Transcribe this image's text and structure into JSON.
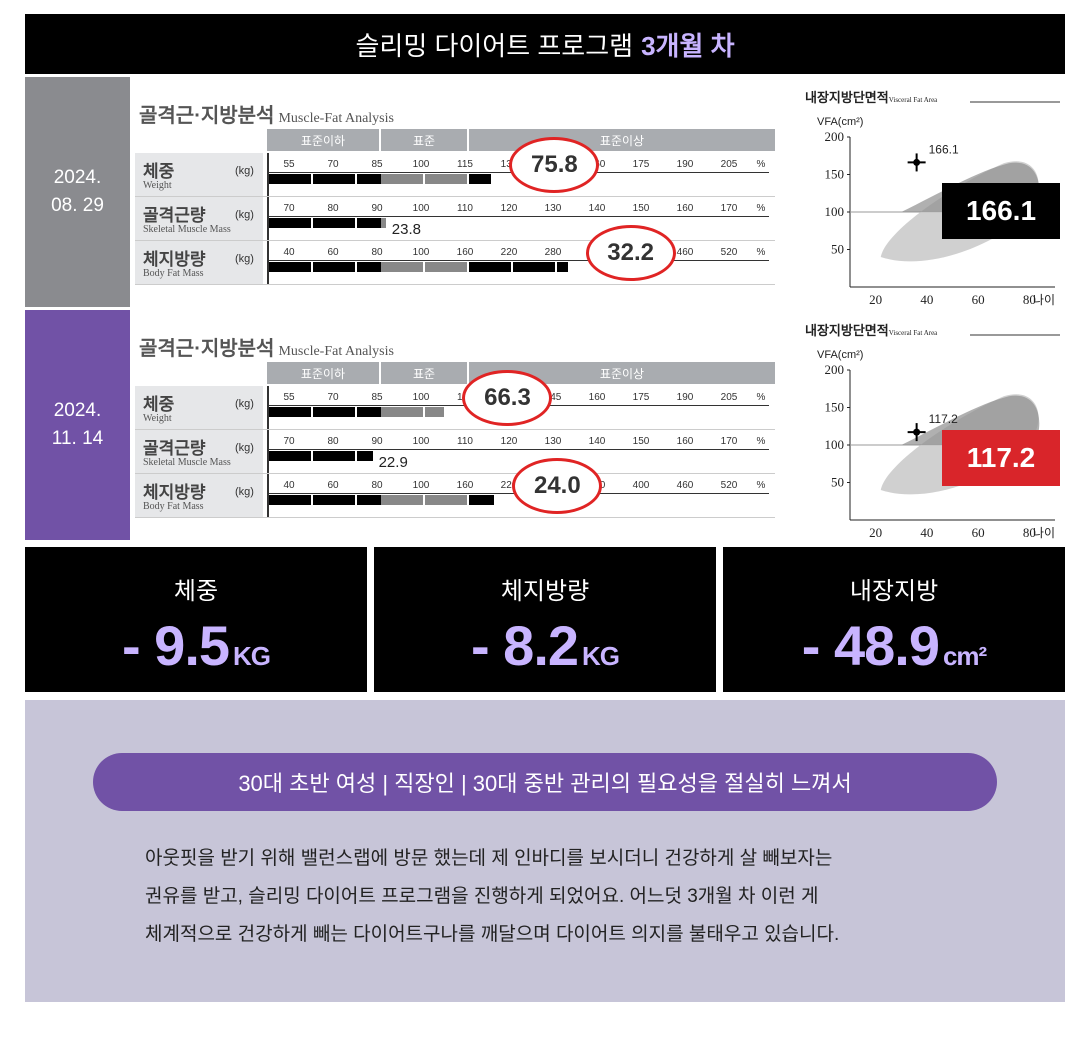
{
  "header": {
    "title_prefix": "슬리밍 다이어트 프로그램",
    "title_highlight": "3개월 차"
  },
  "analysis_common": {
    "title": "골격근·지방분석",
    "subtitle": "Muscle-Fat Analysis",
    "head": [
      "표준이하",
      "표준",
      "표준이상"
    ],
    "rows": [
      {
        "ko": "체중",
        "en": "Weight",
        "unit": "(kg)",
        "ticks": [
          "55",
          "70",
          "85",
          "100",
          "115",
          "130",
          "145",
          "160",
          "175",
          "190",
          "205",
          "%"
        ]
      },
      {
        "ko": "골격근량",
        "en": "Skeletal Muscle Mass",
        "unit": "(kg)",
        "ticks": [
          "70",
          "80",
          "90",
          "100",
          "110",
          "120",
          "130",
          "140",
          "150",
          "160",
          "170",
          "%"
        ]
      },
      {
        "ko": "체지방량",
        "en": "Body Fat Mass",
        "unit": "(kg)",
        "ticks": [
          "40",
          "60",
          "80",
          "100",
          "160",
          "220",
          "280",
          "340",
          "400",
          "460",
          "520",
          "%"
        ]
      }
    ]
  },
  "records": [
    {
      "date_line1": "2024.",
      "date_line2": "08. 29",
      "weight": "75.8",
      "muscle": "23.8",
      "fat": "32.2",
      "weight_bar_pct": 124,
      "muscle_bar_pct": 92,
      "fat_bar_pct": 300,
      "vfa_value": "166.1",
      "vfa_age": 36,
      "vfa_color": "#000000"
    },
    {
      "date_line1": "2024.",
      "date_line2": "11. 14",
      "weight": "66.3",
      "muscle": "22.9",
      "fat": "24.0",
      "weight_bar_pct": 108,
      "muscle_bar_pct": 89,
      "fat_bar_pct": 200,
      "vfa_value": "117.2",
      "vfa_age": 36,
      "vfa_color": "#d9252a"
    }
  ],
  "vfa_common": {
    "title": "내장지방단면적",
    "title_sub": "Visceral Fat Area",
    "ylabel": "VFA(cm²)",
    "yticks": [
      "200",
      "150",
      "100",
      "50"
    ],
    "xticks": [
      "20",
      "40",
      "60",
      "80"
    ],
    "xlabel": "나이"
  },
  "summary": [
    {
      "label": "체중",
      "value": "- 9.5",
      "unit": "KG"
    },
    {
      "label": "체지방량",
      "value": "- 8.2",
      "unit": "KG"
    },
    {
      "label": "내장지방",
      "value": "- 48.9",
      "unit": "cm²"
    }
  ],
  "review": {
    "pill": "30대 초반 여성 | 직장인 | 30대 중반 관리의 필요성을 절실히 느껴서",
    "lines": [
      "아웃핏을 받기 위해 밸런스랩에 방문 했는데 제 인바디를 보시더니 건강하게 살 빼보자는",
      "권유를 받고, 슬리밍 다이어트 프로그램을 진행하게 되었어요. 어느덧 3개월 차 이런 게",
      "체계적으로 건강하게 빼는 다이어트구나를 깨달으며 다이어트 의지를 불태우고 있습니다."
    ]
  }
}
